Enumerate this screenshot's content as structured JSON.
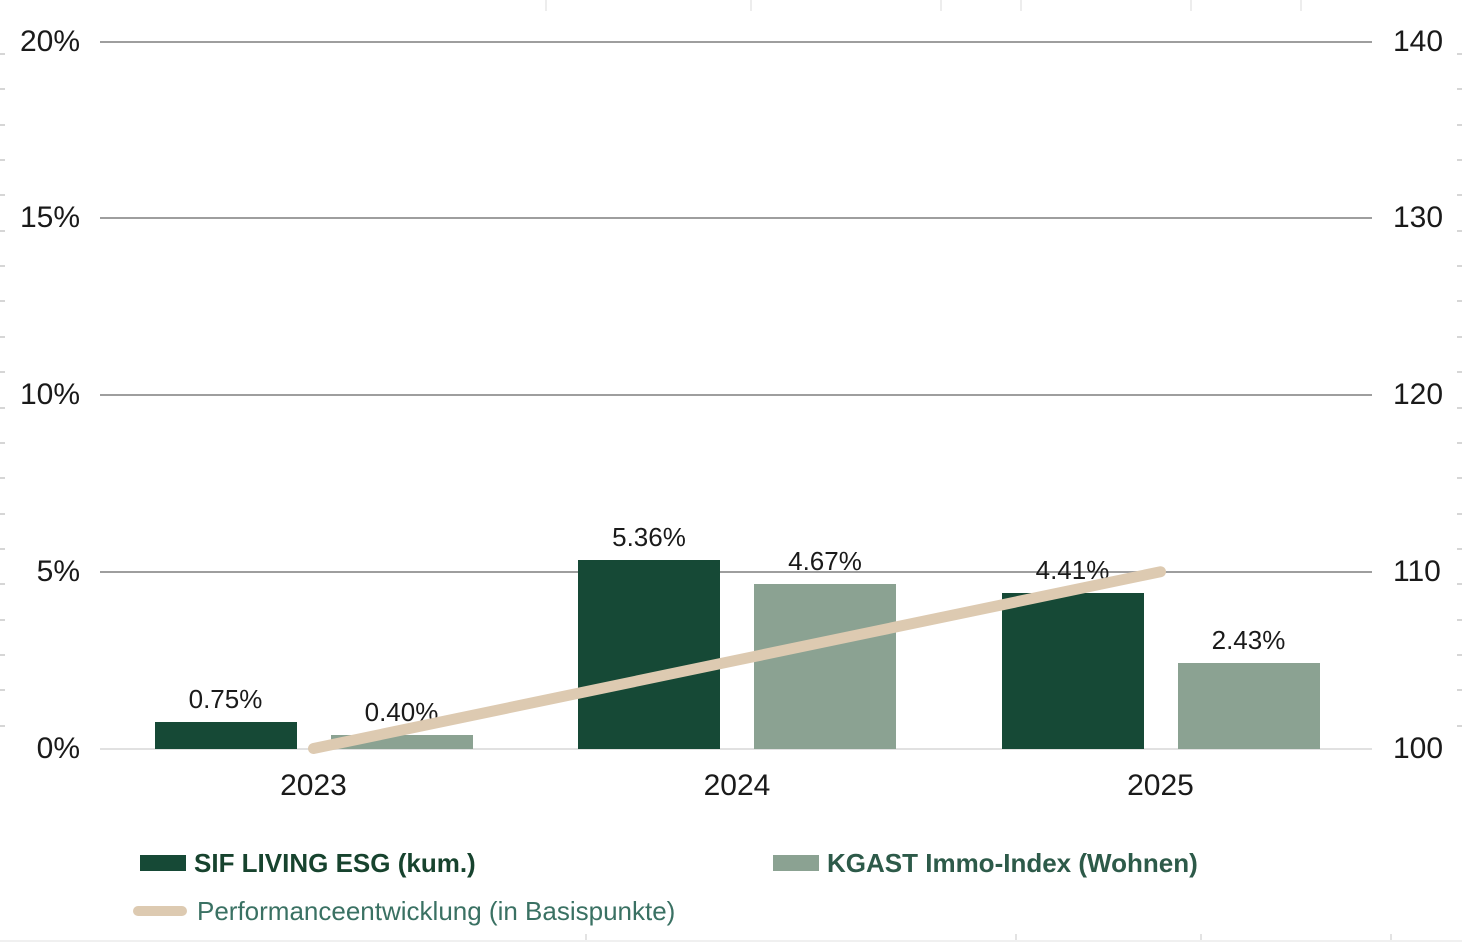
{
  "chart_data": {
    "type": "bar",
    "categories": [
      "2023",
      "2024",
      "2025"
    ],
    "series": [
      {
        "name": "SIF LIVING ESG (kum.)",
        "type": "bar",
        "axis": "left",
        "color": "#164936",
        "values": [
          0.75,
          5.36,
          4.41
        ],
        "labels": [
          "0.75%",
          "5.36%",
          "4.41%"
        ]
      },
      {
        "name": "KGAST Immo-Index (Wohnen)",
        "type": "bar",
        "axis": "left",
        "color": "#8BA292",
        "values": [
          0.4,
          4.67,
          2.43
        ],
        "labels": [
          "0.40%",
          "4.67%",
          "2.43%"
        ]
      },
      {
        "name": "Performanceentwicklung (in Basispunkte)",
        "type": "line",
        "axis": "right",
        "color": "#DDCAB1",
        "values": [
          100,
          105,
          110
        ]
      }
    ],
    "left_axis": {
      "tick_labels": [
        "0%",
        "5%",
        "10%",
        "15%",
        "20%"
      ],
      "tick_values": [
        0,
        5,
        10,
        15,
        20
      ],
      "min": 0,
      "max": 20
    },
    "right_axis": {
      "tick_labels": [
        "100",
        "110",
        "120",
        "130",
        "140"
      ],
      "tick_values": [
        100,
        110,
        120,
        130,
        140
      ],
      "min": 100,
      "max": 140
    },
    "grid": true,
    "legend_position": "bottom-left"
  },
  "colors": {
    "grid_major": "#9E9E9E",
    "grid_baseline": "#E1E1E1",
    "axis_text": "#1A1A1A",
    "legend_sif_text": "#17432E",
    "legend_kgast_text": "#2D5A49",
    "legend_line_text": "#3A7163"
  }
}
